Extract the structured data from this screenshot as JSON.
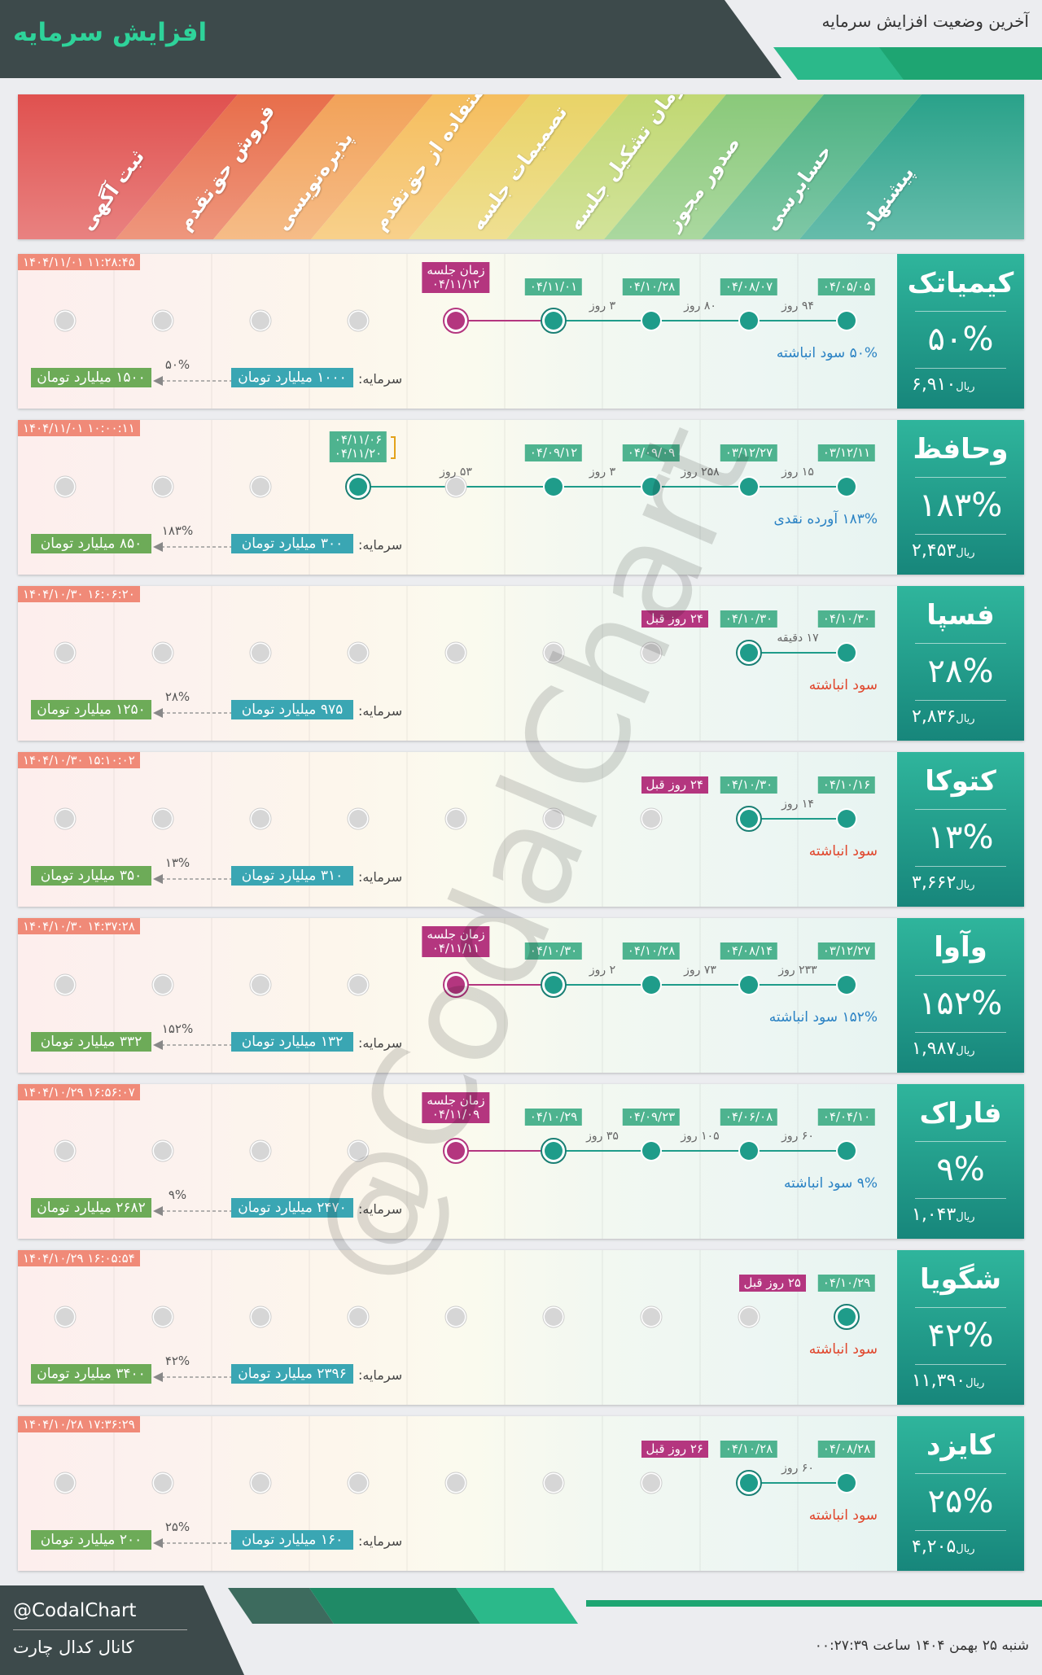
{
  "header": {
    "title": "افزایش سرمایه",
    "subtitle": "آخرین وضعیت افزایش سرمایه"
  },
  "stages": [
    "ثبت آگهی",
    "فروش حق‌تقدم",
    "پذیره‌نویسی",
    "استفاده از حق‌تقدم",
    "تصمیمات جلسه",
    "زمان تشکیل جلسه",
    "صدور مجوز",
    "حسابرسی",
    "پیشنهاد"
  ],
  "colors": {
    "stage_bands": [
      "#e0514f",
      "#e86e4b",
      "#f2a259",
      "#f5be5e",
      "#e9d367",
      "#c1d873",
      "#8ac97a",
      "#4db283",
      "#2aa28a"
    ],
    "done_dot": "#1f9c8a",
    "meeting_dot": "#b4367f",
    "pending_dot": "#d6d6d6",
    "timestamp_bg": "#f08a78",
    "capital_old": "#3aa6b3",
    "capital_new": "#6dab58",
    "return_blue": "#2a82c4",
    "return_red": "#e0452b"
  },
  "cards": [
    {
      "name": "کیمیاتک",
      "percent": "۵۰%",
      "price": "۶,۹۱۰",
      "price_unit": "ریال",
      "timestamp": "۱۴۰۴/۱۱/۰۱ ۱۱:۲۸:۴۵",
      "return_text": "۵۰% سود انباشته",
      "return_color": "blue",
      "capital_label": "سرمایه:",
      "capital_old": "۱۰۰۰ میلیارد تومان",
      "capital_new": "۱۵۰۰ میلیارد تومان",
      "capital_pct": "۵۰%",
      "dates": [
        {
          "stage": 8,
          "text": "۰۴/۰۵/۰۵"
        },
        {
          "stage": 7,
          "text": "۰۴/۰۸/۰۷"
        },
        {
          "stage": 6,
          "text": "۰۴/۱۰/۲۸"
        },
        {
          "stage": 5,
          "text": "۰۴/۱۱/۰۱"
        }
      ],
      "gaps": [
        {
          "from": 8,
          "to": 7,
          "text": "۹۴ روز"
        },
        {
          "from": 7,
          "to": 6,
          "text": "۸۰ روز"
        },
        {
          "from": 6,
          "to": 5,
          "text": "۳ روز"
        }
      ],
      "done": [
        8,
        7,
        6,
        5
      ],
      "current": 5,
      "meeting": {
        "stage": 4,
        "label": "زمان جلسه",
        "date": "۰۴/۱۱/۱۲"
      }
    },
    {
      "name": "وحافظ",
      "percent": "۱۸۳%",
      "price": "۲,۴۵۳",
      "price_unit": "ریال",
      "timestamp": "۱۴۰۴/۱۱/۰۱ ۱۰:۰۰:۱۱",
      "return_text": "۱۸۳% آورده نقدی",
      "return_color": "blue",
      "capital_label": "سرمایه:",
      "capital_old": "۳۰۰ میلیارد تومان",
      "capital_new": "۸۵۰ میلیارد تومان",
      "capital_pct": "۱۸۳%",
      "dates": [
        {
          "stage": 8,
          "text": "۰۳/۱۲/۱۱"
        },
        {
          "stage": 7,
          "text": "۰۳/۱۲/۲۷"
        },
        {
          "stage": 6,
          "text": "۰۴/۰۹/۰۹"
        },
        {
          "stage": 5,
          "text": "۰۴/۰۹/۱۲"
        }
      ],
      "gaps": [
        {
          "from": 8,
          "to": 7,
          "text": "۱۵ روز"
        },
        {
          "from": 7,
          "to": 6,
          "text": "۲۵۸ روز"
        },
        {
          "from": 6,
          "to": 5,
          "text": "۳ روز"
        },
        {
          "from": 5,
          "to": 3,
          "text": "۵۳ روز"
        }
      ],
      "done": [
        8,
        7,
        6,
        5,
        3
      ],
      "current": 3,
      "current_label": [
        "۰۴/۱۱/۰۶",
        "۰۴/۱۱/۲۰"
      ]
    },
    {
      "name": "فسپا",
      "percent": "۲۸%",
      "price": "۲,۸۳۶",
      "price_unit": "ریال",
      "timestamp": "۱۴۰۴/۱۰/۳۰ ۱۶:۰۶:۲۰",
      "return_text": "سود انباشته",
      "return_color": "red",
      "capital_label": "سرمایه:",
      "capital_old": "۹۷۵ میلیارد تومان",
      "capital_new": "۱۲۵۰ میلیارد تومان",
      "capital_pct": "۲۸%",
      "dates": [
        {
          "stage": 8,
          "text": "۰۴/۱۰/۳۰"
        },
        {
          "stage": 7,
          "text": "۰۴/۱۰/۳۰"
        }
      ],
      "gaps": [
        {
          "from": 8,
          "to": 7,
          "text": "۱۷ دقیقه"
        }
      ],
      "done": [
        8,
        7
      ],
      "current": 7,
      "ago": "۲۴ روز قبل"
    },
    {
      "name": "کتوکا",
      "percent": "۱۳%",
      "price": "۳,۶۶۲",
      "price_unit": "ریال",
      "timestamp": "۱۴۰۴/۱۰/۳۰ ۱۵:۱۰:۰۲",
      "return_text": "سود انباشته",
      "return_color": "red",
      "capital_label": "سرمایه:",
      "capital_old": "۳۱۰ میلیارد تومان",
      "capital_new": "۳۵۰ میلیارد تومان",
      "capital_pct": "۱۳%",
      "dates": [
        {
          "stage": 8,
          "text": "۰۴/۱۰/۱۶"
        },
        {
          "stage": 7,
          "text": "۰۴/۱۰/۳۰"
        }
      ],
      "gaps": [
        {
          "from": 8,
          "to": 7,
          "text": "۱۴ روز"
        }
      ],
      "done": [
        8,
        7
      ],
      "current": 7,
      "ago": "۲۴ روز قبل"
    },
    {
      "name": "وآوا",
      "percent": "۱۵۲%",
      "price": "۱,۹۸۷",
      "price_unit": "ریال",
      "timestamp": "۱۴۰۴/۱۰/۳۰ ۱۴:۳۷:۲۸",
      "return_text": "۱۵۲% سود انباشته",
      "return_color": "blue",
      "capital_label": "سرمایه:",
      "capital_old": "۱۳۲ میلیارد تومان",
      "capital_new": "۳۳۲ میلیارد تومان",
      "capital_pct": "۱۵۲%",
      "dates": [
        {
          "stage": 8,
          "text": "۰۳/۱۲/۲۷"
        },
        {
          "stage": 7,
          "text": "۰۴/۰۸/۱۴"
        },
        {
          "stage": 6,
          "text": "۰۴/۱۰/۲۸"
        },
        {
          "stage": 5,
          "text": "۰۴/۱۰/۳۰"
        }
      ],
      "gaps": [
        {
          "from": 8,
          "to": 7,
          "text": "۲۳۳ روز"
        },
        {
          "from": 7,
          "to": 6,
          "text": "۷۳ روز"
        },
        {
          "from": 6,
          "to": 5,
          "text": "۲ روز"
        }
      ],
      "done": [
        8,
        7,
        6,
        5
      ],
      "current": 5,
      "meeting": {
        "stage": 4,
        "label": "زمان جلسه",
        "date": "۰۴/۱۱/۱۱"
      }
    },
    {
      "name": "فاراک",
      "percent": "۹%",
      "price": "۱,۰۴۳",
      "price_unit": "ریال",
      "timestamp": "۱۴۰۴/۱۰/۲۹ ۱۶:۵۶:۰۷",
      "return_text": "۹% سود انباشته",
      "return_color": "blue",
      "capital_label": "سرمایه:",
      "capital_old": "۲۴۷۰ میلیارد تومان",
      "capital_new": "۲۶۸۲ میلیارد تومان",
      "capital_pct": "۹%",
      "dates": [
        {
          "stage": 8,
          "text": "۰۴/۰۴/۱۰"
        },
        {
          "stage": 7,
          "text": "۰۴/۰۶/۰۸"
        },
        {
          "stage": 6,
          "text": "۰۴/۰۹/۲۳"
        },
        {
          "stage": 5,
          "text": "۰۴/۱۰/۲۹"
        }
      ],
      "gaps": [
        {
          "from": 8,
          "to": 7,
          "text": "۶۰ روز"
        },
        {
          "from": 7,
          "to": 6,
          "text": "۱۰۵ روز"
        },
        {
          "from": 6,
          "to": 5,
          "text": "۳۵ روز"
        }
      ],
      "done": [
        8,
        7,
        6,
        5
      ],
      "current": 5,
      "meeting": {
        "stage": 4,
        "label": "زمان جلسه",
        "date": "۰۴/۱۱/۰۹"
      }
    },
    {
      "name": "شگویا",
      "percent": "۴۲%",
      "price": "۱۱,۳۹۰",
      "price_unit": "ریال",
      "timestamp": "۱۴۰۴/۱۰/۲۹ ۱۶:۰۵:۵۴",
      "return_text": "سود انباشته",
      "return_color": "red",
      "capital_label": "سرمایه:",
      "capital_old": "۲۳۹۶ میلیارد تومان",
      "capital_new": "۳۴۰۰ میلیارد تومان",
      "capital_pct": "۴۲%",
      "dates": [
        {
          "stage": 8,
          "text": "۰۴/۱۰/۲۹"
        }
      ],
      "gaps": [],
      "done": [
        8
      ],
      "current": 8,
      "ago": "۲۵ روز قبل"
    },
    {
      "name": "کایزد",
      "percent": "۲۵%",
      "price": "۴,۲۰۵",
      "price_unit": "ریال",
      "timestamp": "۱۴۰۴/۱۰/۲۸ ۱۷:۳۶:۲۹",
      "return_text": "سود انباشته",
      "return_color": "red",
      "capital_label": "سرمایه:",
      "capital_old": "۱۶۰ میلیارد تومان",
      "capital_new": "۲۰۰ میلیارد تومان",
      "capital_pct": "۲۵%",
      "dates": [
        {
          "stage": 8,
          "text": "۰۴/۰۸/۲۸"
        },
        {
          "stage": 7,
          "text": "۰۴/۱۰/۲۸"
        }
      ],
      "gaps": [
        {
          "from": 8,
          "to": 7,
          "text": "۶۰ روز"
        }
      ],
      "done": [
        8,
        7
      ],
      "current": 7,
      "ago": "۲۶ روز قبل"
    }
  ],
  "watermark": "@CodalChart",
  "footer": {
    "handle": "@CodalChart",
    "channel": "کانال کدال چارت",
    "date": "شنبه ۲۵ بهمن ۱۴۰۴ ساعت ۰۰:۲۷:۳۹",
    "stripe_colors": [
      "#3d6b5e",
      "#1f8a66",
      "#2bb98a"
    ]
  }
}
